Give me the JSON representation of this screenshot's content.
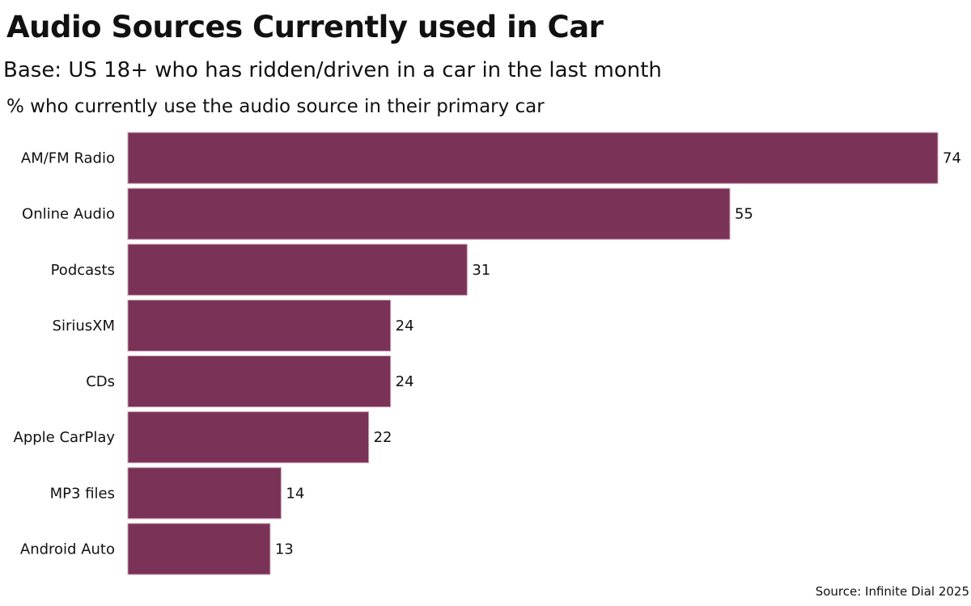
{
  "chart_data": {
    "type": "bar",
    "orientation": "horizontal",
    "title": "Audio Sources Currently used in Car",
    "subtitle": "Base: US 18+ who has ridden/driven in a car in the last month",
    "caption": "% who currently use the audio source in their primary car",
    "source": "Source: Infinite Dial 2025",
    "categories": [
      "AM/FM Radio",
      "Online Audio",
      "Podcasts",
      "SiriusXM",
      "CDs",
      "Apple CarPlay",
      "MP3 files",
      "Android Auto"
    ],
    "values": [
      74,
      55,
      31,
      24,
      24,
      22,
      14,
      13
    ],
    "xlabel": "",
    "ylabel": "",
    "xlim": [
      0,
      74
    ],
    "grid": false,
    "legend": "none",
    "bar_color": "#7a3256"
  }
}
